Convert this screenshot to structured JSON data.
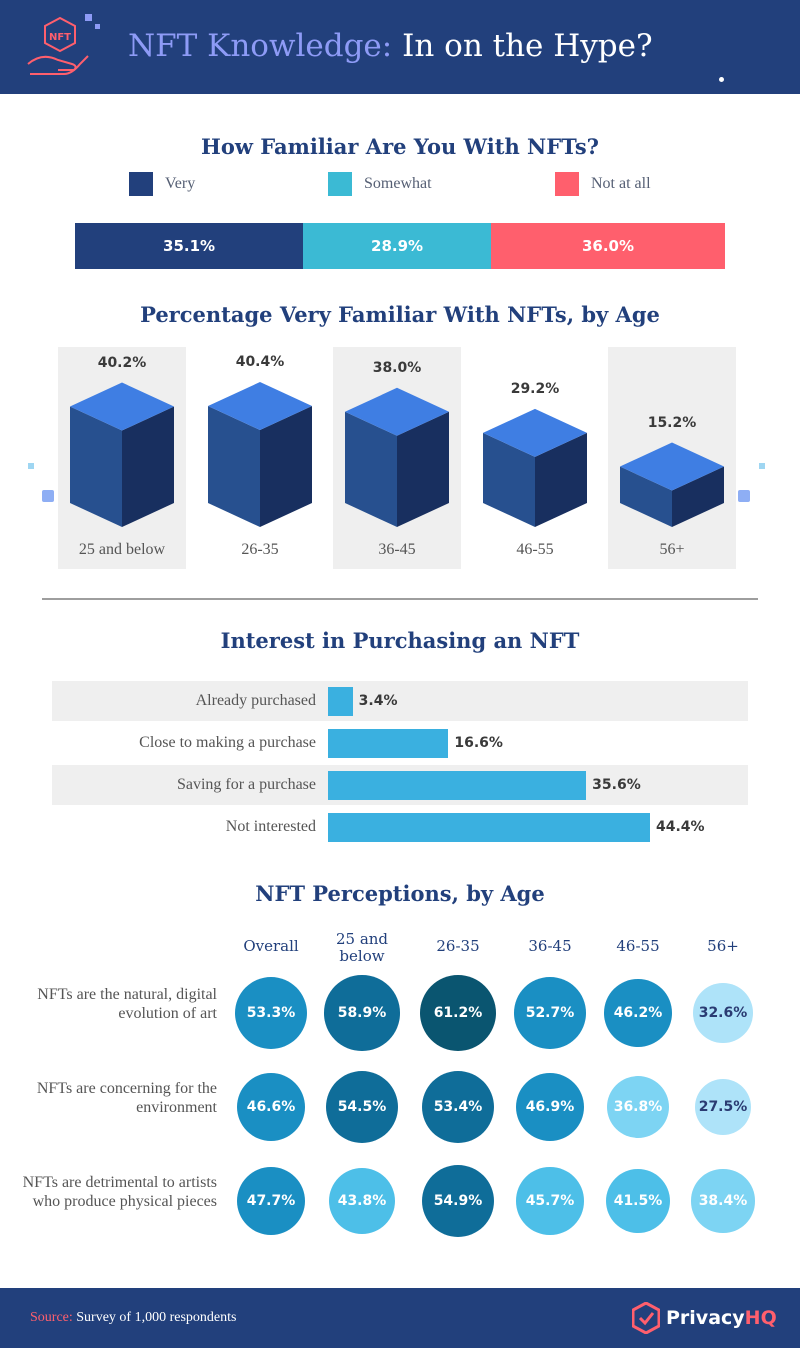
{
  "header": {
    "title_highlight": "NFT Knowledge:",
    "title_rest": " In on the Hype?",
    "logo_text": "NFT",
    "accent": "#8e9bf6",
    "bg": "#22407c"
  },
  "colors": {
    "very": "#22407c",
    "somewhat": "#3bbad4",
    "not_at_all": "#ff5f6d",
    "cube_top": "#3f7ee3",
    "cube_left": "#27508f",
    "cube_right": "#182f5f",
    "interest_bar": "#3ab0e0"
  },
  "familiar": {
    "title": "How Familiar Are You With NFTs?",
    "legend": [
      {
        "label": "Very",
        "color": "#22407c"
      },
      {
        "label": "Somewhat",
        "color": "#3bbad4"
      },
      {
        "label": "Not at all",
        "color": "#ff5f6d"
      }
    ]
  },
  "age": {
    "title": "Percentage Very Familiar With NFTs, by Age"
  },
  "interest": {
    "title": "Interest in Purchasing an NFT"
  },
  "perceptions": {
    "title": "NFT Perceptions, by Age"
  },
  "footer": {
    "source_key": "Source:",
    "source_text": " Survey of 1,000 respondents",
    "brand_main": "Privacy",
    "brand_accent": "HQ"
  },
  "chart_data": [
    {
      "type": "bar",
      "orientation": "horizontal-stacked",
      "title": "How Familiar Are You With NFTs?",
      "categories": [
        "Very",
        "Somewhat",
        "Not at all"
      ],
      "values": [
        35.1,
        28.9,
        36.0
      ],
      "labels": [
        "35.1%",
        "28.9%",
        "36.0%"
      ],
      "legend": "top"
    },
    {
      "type": "bar",
      "title": "Percentage Very Familiar With NFTs, by Age",
      "categories": [
        "25 and below",
        "26-35",
        "36-45",
        "46-55",
        "56+"
      ],
      "values": [
        40.2,
        40.4,
        38.0,
        29.2,
        15.2
      ],
      "labels": [
        "40.2%",
        "40.4%",
        "38.0%",
        "29.2%",
        "15.2%"
      ]
    },
    {
      "type": "bar",
      "orientation": "horizontal",
      "title": "Interest in Purchasing an NFT",
      "categories": [
        "Already purchased",
        "Close to making a purchase",
        "Saving for a purchase",
        "Not interested"
      ],
      "values": [
        3.4,
        16.6,
        35.6,
        44.4
      ],
      "labels": [
        "3.4%",
        "16.6%",
        "35.6%",
        "44.4%"
      ]
    },
    {
      "type": "heatmap",
      "title": "NFT Perceptions, by Age",
      "columns": [
        "Overall",
        "25 and below",
        "26-35",
        "36-45",
        "46-55",
        "56+"
      ],
      "rows": [
        {
          "label": "NFTs are the natural, digital evolution of art",
          "values": [
            53.3,
            58.9,
            61.2,
            52.7,
            46.2,
            32.6
          ],
          "labels": [
            "53.3%",
            "58.9%",
            "61.2%",
            "52.7%",
            "46.2%",
            "32.6%"
          ]
        },
        {
          "label": "NFTs are concerning for the environment",
          "values": [
            46.6,
            54.5,
            53.4,
            46.9,
            36.8,
            27.5
          ],
          "labels": [
            "46.6%",
            "54.5%",
            "53.4%",
            "46.9%",
            "36.8%",
            "27.5%"
          ]
        },
        {
          "label": "NFTs are detrimental to artists who produce physical pieces",
          "values": [
            47.7,
            43.8,
            54.9,
            45.7,
            41.5,
            38.4
          ],
          "labels": [
            "47.7%",
            "43.8%",
            "54.9%",
            "45.7%",
            "41.5%",
            "38.4%"
          ]
        }
      ]
    }
  ]
}
